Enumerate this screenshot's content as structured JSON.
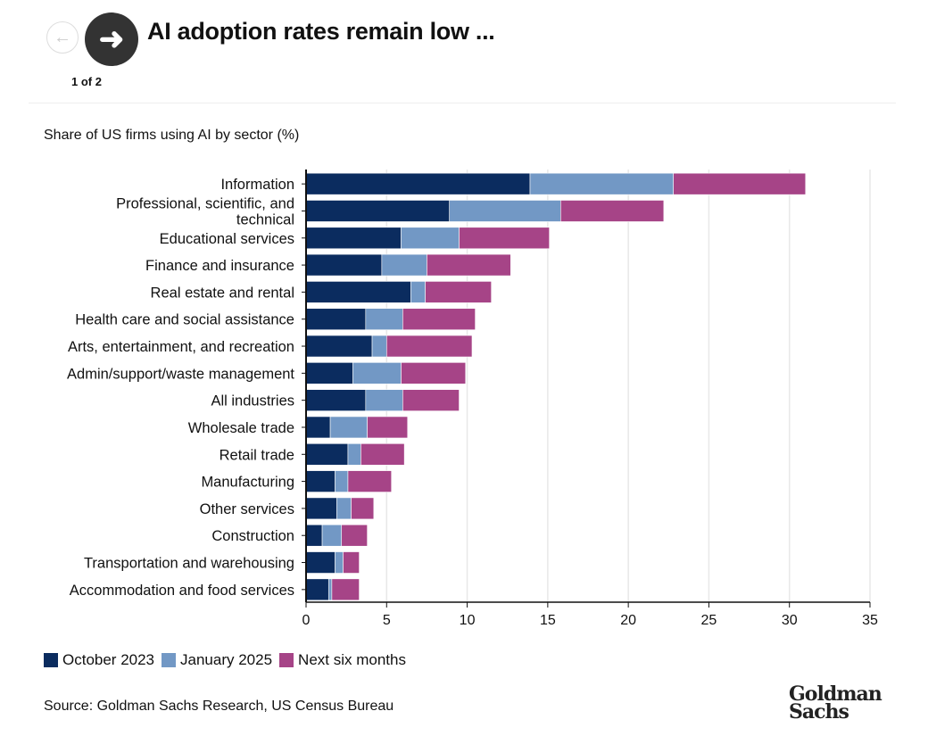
{
  "header": {
    "title": "AI adoption rates remain low ...",
    "pager": "1 of 2",
    "prev_icon": "arrow-left-icon",
    "next_icon": "arrow-right-icon"
  },
  "chart_data": {
    "type": "bar",
    "orientation": "horizontal",
    "stacked": true,
    "title": "Share of US firms using AI by sector (%)",
    "categories": [
      "Information",
      "Professional, scientific, and technical",
      "Educational services",
      "Finance and insurance",
      "Real estate and rental",
      "Health care and social assistance",
      "Arts, entertainment, and recreation",
      "Admin/support/waste management",
      "All industries",
      "Wholesale trade",
      "Retail trade",
      "Manufacturing",
      "Other services",
      "Construction",
      "Transportation and warehousing",
      "Accommodation and food services"
    ],
    "series": [
      {
        "name": "October 2023",
        "color": "#0b2c5f",
        "values": [
          13.9,
          8.9,
          5.9,
          4.7,
          6.5,
          3.7,
          4.1,
          2.9,
          3.7,
          1.5,
          2.6,
          1.8,
          1.9,
          1.0,
          1.8,
          1.4
        ]
      },
      {
        "name": "January 2025",
        "color": "#7298c5",
        "values": [
          8.9,
          6.9,
          3.6,
          2.8,
          0.9,
          2.3,
          0.9,
          3.0,
          2.3,
          2.3,
          0.8,
          0.8,
          0.9,
          1.2,
          0.5,
          0.2
        ]
      },
      {
        "name": "Next six months",
        "color": "#a64487",
        "values": [
          8.2,
          6.4,
          5.6,
          5.2,
          4.1,
          4.5,
          5.3,
          4.0,
          3.5,
          2.5,
          2.7,
          2.7,
          1.4,
          1.6,
          1.0,
          1.7
        ]
      }
    ],
    "xlim": [
      0,
      35
    ],
    "xticks": [
      "0",
      "5",
      "10",
      "15",
      "20",
      "25",
      "30",
      "35"
    ],
    "grid": true,
    "legend": "bottom-left",
    "source": "Source: Goldman Sachs Research, US Census Bureau"
  },
  "logo": {
    "line1": "Goldman",
    "line2": "Sachs"
  }
}
